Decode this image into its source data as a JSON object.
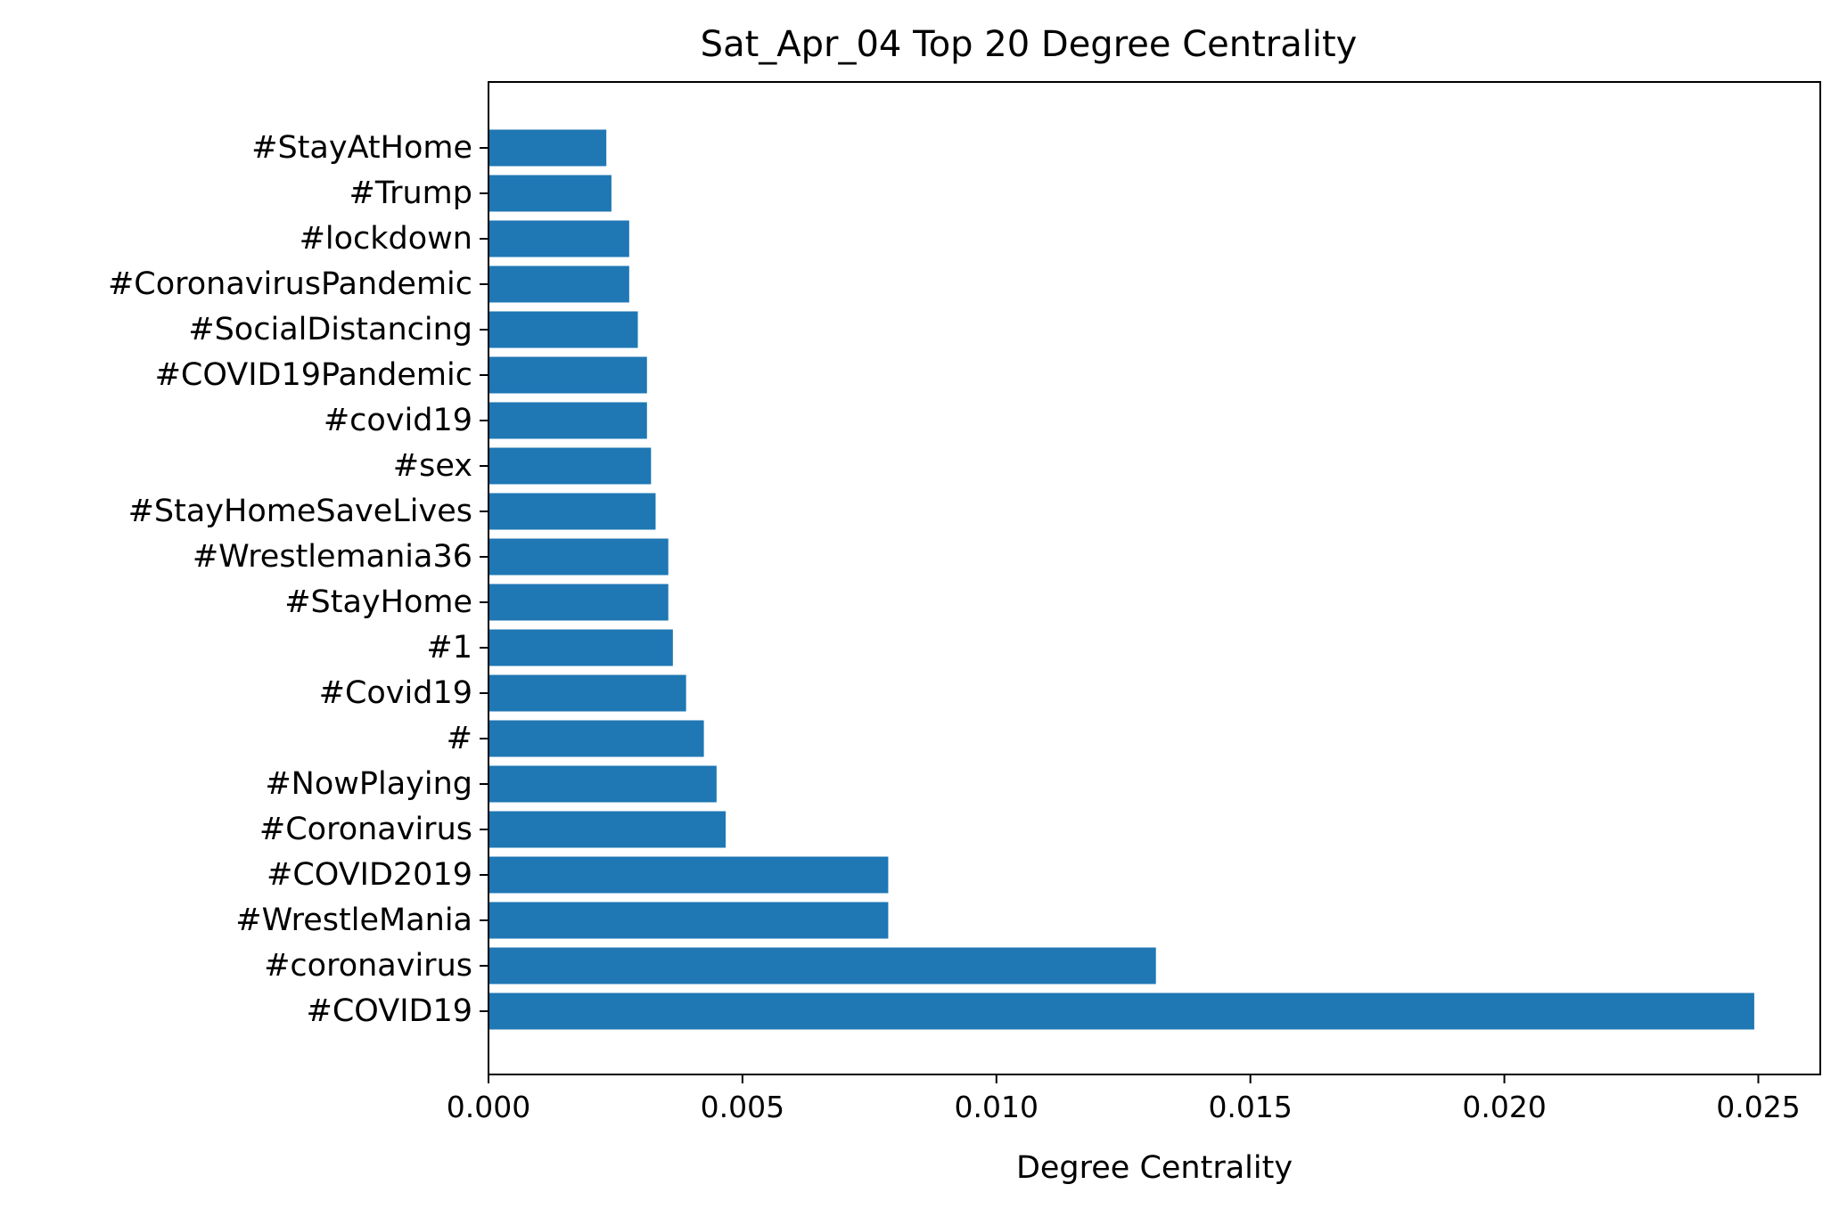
{
  "chart_data": {
    "type": "bar",
    "orientation": "horizontal",
    "title": "Sat_Apr_04 Top 20 Degree Centrality",
    "xlabel": "Degree Centrality",
    "ylabel": "",
    "categories": [
      "#COVID19",
      "#coronavirus",
      "#WrestleMania",
      "#COVID2019",
      "#Coronavirus",
      "#NowPlaying",
      "#",
      "#Covid19",
      "#1",
      "#StayHome",
      "#Wrestlemania36",
      "#StayHomeSaveLives",
      "#sex",
      "#covid19",
      "#COVID19Pandemic",
      "#SocialDistancing",
      "#CoronavirusPandemic",
      "#lockdown",
      "#Trump",
      "#StayAtHome"
    ],
    "values": [
      0.02492,
      0.01314,
      0.00787,
      0.00787,
      0.00467,
      0.00449,
      0.00424,
      0.00389,
      0.00363,
      0.00354,
      0.00354,
      0.00329,
      0.0032,
      0.00312,
      0.00312,
      0.00294,
      0.00277,
      0.00277,
      0.00242,
      0.00232
    ],
    "xlim": [
      0,
      0.02622
    ],
    "xticks": [
      "0.000",
      "0.005",
      "0.010",
      "0.015",
      "0.020",
      "0.025"
    ],
    "xtick_values": [
      0,
      0.005,
      0.01,
      0.015,
      0.02,
      0.025
    ],
    "grid": false,
    "legend": "none",
    "bar_color": "#1f77b4"
  }
}
